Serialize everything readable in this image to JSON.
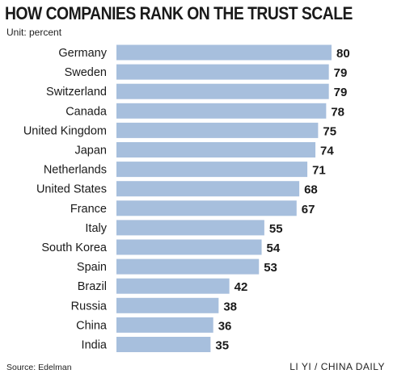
{
  "title": "HOW COMPANIES RANK ON THE TRUST SCALE",
  "unit_label": "Unit: percent",
  "source": "Source: Edelman",
  "credit": "LI YI / CHINA DAILY",
  "colors": {
    "bar": "#a7bfdd",
    "text": "#1a1a1a"
  },
  "chart_data": {
    "type": "bar",
    "orientation": "horizontal",
    "categories": [
      "Germany",
      "Sweden",
      "Switzerland",
      "Canada",
      "United Kingdom",
      "Japan",
      "Netherlands",
      "United States",
      "France",
      "Italy",
      "South Korea",
      "Spain",
      "Brazil",
      "Russia",
      "China",
      "India"
    ],
    "values": [
      80,
      79,
      79,
      78,
      75,
      74,
      71,
      68,
      67,
      55,
      54,
      53,
      42,
      38,
      36,
      35
    ],
    "title": "HOW COMPANIES RANK ON THE TRUST SCALE",
    "xlim": [
      0,
      80
    ],
    "grid": false,
    "legend": "none"
  }
}
